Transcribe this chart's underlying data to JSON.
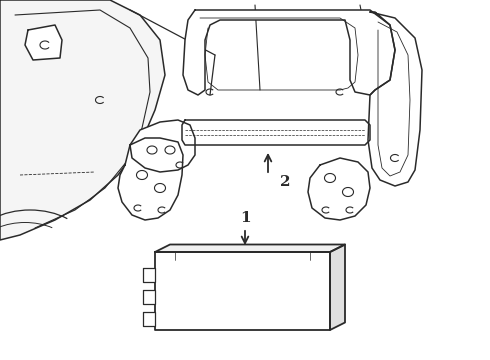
{
  "bg_color": "#ffffff",
  "line_color": "#2a2a2a",
  "line_width": 1.1,
  "fig_width": 4.9,
  "fig_height": 3.6,
  "dpi": 100,
  "label1": "1",
  "label2": "2"
}
